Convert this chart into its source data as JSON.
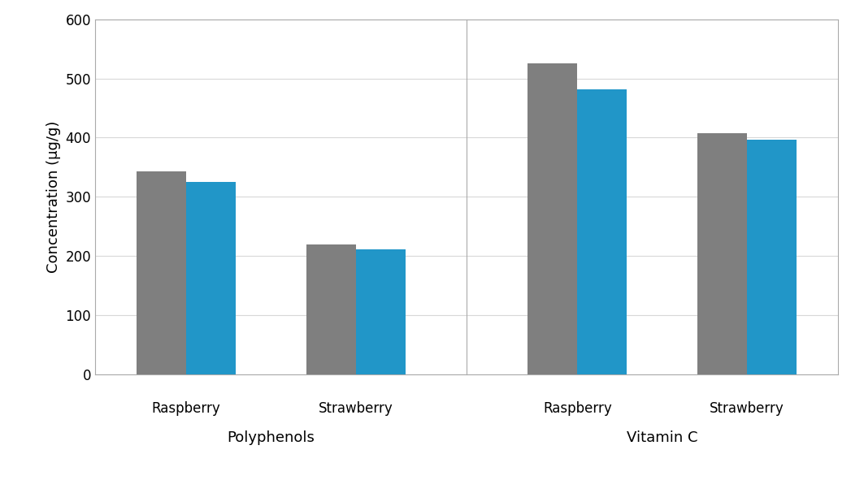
{
  "groups": [
    {
      "label": "Raspberry",
      "category": "Polyphenols",
      "before_hpp": 343,
      "after_hpp": 325
    },
    {
      "label": "Strawberry",
      "category": "Polyphenols",
      "before_hpp": 220,
      "after_hpp": 211
    },
    {
      "label": "Raspberry",
      "category": "Vitamin C",
      "before_hpp": 525,
      "after_hpp": 481
    },
    {
      "label": "Strawberry",
      "category": "Vitamin C",
      "before_hpp": 407,
      "after_hpp": 397
    }
  ],
  "color_before": "#7f7f7f",
  "color_after": "#2196c8",
  "ylabel": "Concentration (μg/g)",
  "ylim": [
    0,
    600
  ],
  "yticks": [
    0,
    100,
    200,
    300,
    400,
    500,
    600
  ],
  "bar_width": 0.38,
  "group_centers": [
    1.0,
    2.3,
    4.0,
    5.3
  ],
  "category_labels": [
    "Polyphenols",
    "Vitamin C"
  ],
  "sub_labels": [
    "Raspberry",
    "Strawberry",
    "Raspberry",
    "Strawberry"
  ],
  "background_color": "#ffffff",
  "spine_color": "#aaaaaa",
  "grid_color": "#d8d8d8",
  "divider_x": 3.15,
  "xlim": [
    0.3,
    6.0
  ],
  "ylabel_fontsize": 13,
  "tick_fontsize": 12,
  "sublabel_fontsize": 12,
  "catlabel_fontsize": 13
}
